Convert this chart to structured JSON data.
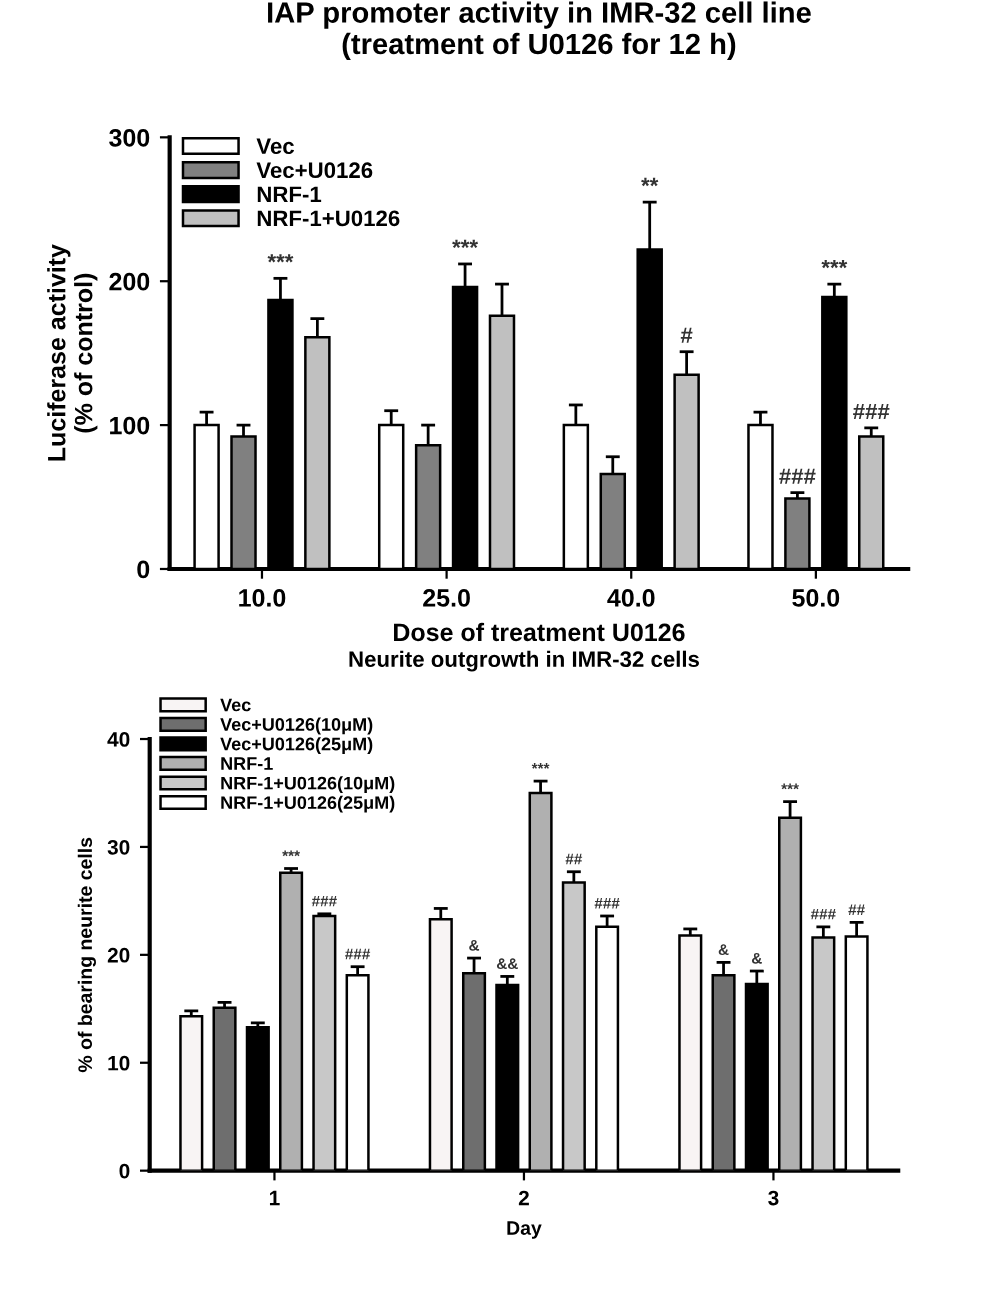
{
  "chart_data": [
    {
      "type": "bar",
      "title": "IAP promoter activity in IMR-32 cell line\n(treatment of U0126 for 12 h)",
      "xlabel": "Dose of treatment U0126",
      "ylabel": "Luciferase activity\n(% of control)",
      "categories": [
        "10.0",
        "25.0",
        "40.0",
        "50.0"
      ],
      "ylim": [
        0,
        300
      ],
      "yticks": [
        0,
        100,
        200,
        300
      ],
      "grid": false,
      "legend": "top left",
      "series": [
        {
          "name": "Vec",
          "color": "#ffffff",
          "values": [
            100,
            100,
            100,
            100
          ],
          "errors": [
            9,
            10,
            14,
            9
          ],
          "value_labels": [
            null,
            null,
            null,
            null
          ]
        },
        {
          "name": "Vec+U0126",
          "color": "#808080",
          "values": [
            92,
            86,
            66,
            49
          ],
          "errors": [
            8,
            14,
            12,
            4
          ],
          "value_labels": [
            null,
            null,
            null,
            "###"
          ]
        },
        {
          "name": "NRF-1",
          "color": "#000000",
          "values": [
            187,
            196,
            222,
            189
          ],
          "errors": [
            15,
            16,
            33,
            9
          ],
          "value_labels": [
            "***",
            "***",
            "**",
            "***"
          ]
        },
        {
          "name": "NRF-1+U0126",
          "color": "#c0c0c0",
          "values": [
            161,
            176,
            135,
            92
          ],
          "errors": [
            13,
            22,
            16,
            6
          ],
          "value_labels": [
            null,
            null,
            "#",
            "###"
          ]
        }
      ]
    },
    {
      "type": "bar",
      "title": "Neurite outgrowth in IMR-32 cells",
      "xlabel": "Day",
      "ylabel": "% of bearing neurite cells",
      "categories": [
        "1",
        "2",
        "3"
      ],
      "ylim": [
        0,
        40
      ],
      "yticks": [
        0,
        10,
        20,
        30,
        40
      ],
      "grid": false,
      "legend": "top left",
      "series": [
        {
          "name": "Vec",
          "color": "#f8f4f4",
          "values": [
            14.3,
            23.3,
            21.8
          ],
          "errors": [
            0.5,
            1.0,
            0.6
          ],
          "value_labels": [
            null,
            null,
            null
          ]
        },
        {
          "name": "Vec+U0126(10μM)",
          "color": "#6e6e6e",
          "values": [
            15.1,
            18.3,
            18.1
          ],
          "errors": [
            0.5,
            1.4,
            1.2
          ],
          "value_labels": [
            null,
            "&",
            "&"
          ]
        },
        {
          "name": "Vec+U0126(25μM)",
          "color": "#000000",
          "values": [
            13.3,
            17.2,
            17.3
          ],
          "errors": [
            0.4,
            0.8,
            1.2
          ],
          "value_labels": [
            null,
            "&&",
            "&"
          ]
        },
        {
          "name": "NRF-1",
          "color": "#b0b0b0",
          "values": [
            27.6,
            35.0,
            32.7
          ],
          "errors": [
            0.4,
            1.1,
            1.5
          ],
          "value_labels": [
            "***",
            "***",
            "***"
          ]
        },
        {
          "name": "NRF-1+U0126(10μM)",
          "color": "#c8c8c8",
          "values": [
            23.6,
            26.7,
            21.6
          ],
          "errors": [
            0.2,
            1.0,
            1.0
          ],
          "value_labels": [
            "###",
            "##",
            "###"
          ]
        },
        {
          "name": "NRF-1+U0126(25μM)",
          "color": "#ffffff",
          "values": [
            18.1,
            22.6,
            21.7
          ],
          "errors": [
            0.8,
            1.0,
            1.3
          ],
          "value_labels": [
            "###",
            "###",
            "##"
          ]
        }
      ]
    }
  ]
}
